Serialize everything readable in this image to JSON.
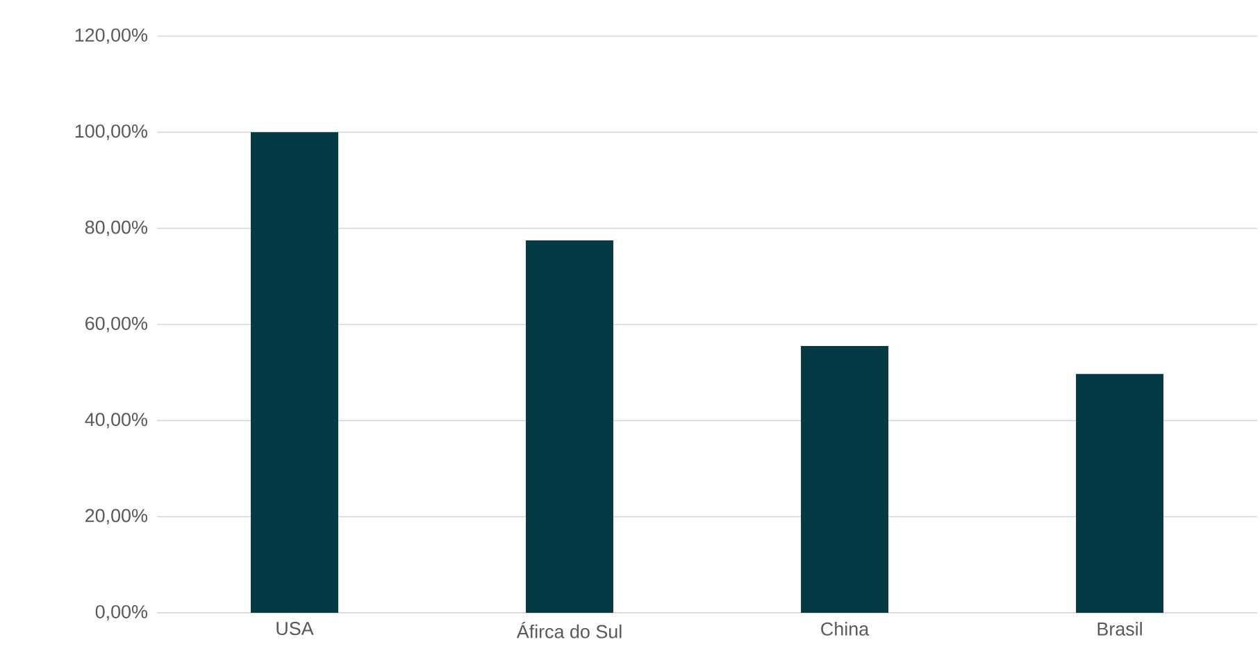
{
  "chart_data": {
    "type": "bar",
    "categories": [
      "USA",
      "Áfirca do Sul",
      "China",
      "Brasil"
    ],
    "values": [
      100,
      77.5,
      55.5,
      49.7
    ],
    "color": "#033a44",
    "ylim": [
      0,
      120
    ],
    "yticks": [
      {
        "value": 0,
        "label": "0,00%"
      },
      {
        "value": 20,
        "label": "20,00%"
      },
      {
        "value": 40,
        "label": "40,00%"
      },
      {
        "value": 60,
        "label": "60,00%"
      },
      {
        "value": 80,
        "label": "80,00%"
      },
      {
        "value": 100,
        "label": "100,00%"
      },
      {
        "value": 120,
        "label": "120,00%"
      }
    ],
    "grid": "y"
  }
}
